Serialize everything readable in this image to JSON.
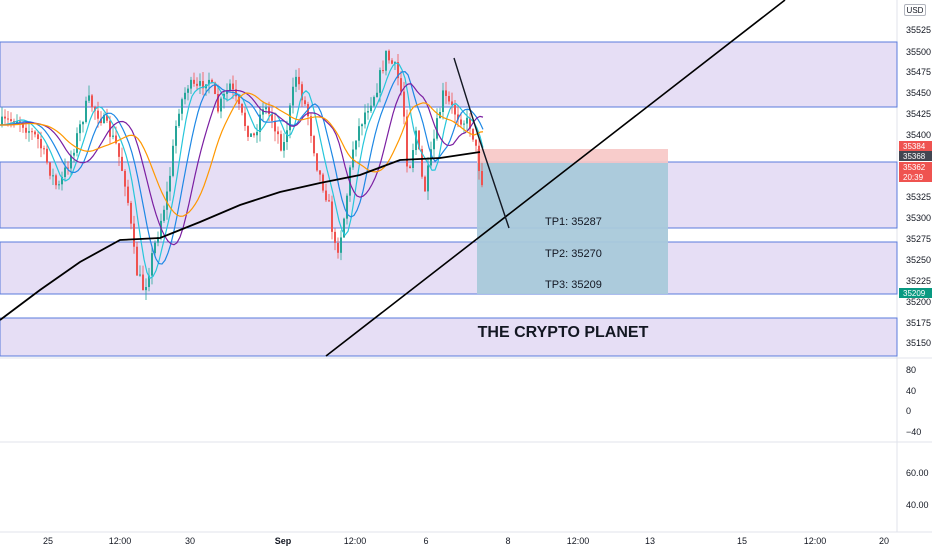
{
  "chart": {
    "currency": "USD",
    "watermark": "THE CRYPTO PLANET",
    "price_ticks": [
      "35525",
      "35500",
      "35475",
      "35450",
      "35425",
      "35400",
      "35375",
      "35350",
      "35325",
      "35300",
      "35275",
      "35250",
      "35225",
      "35200",
      "35175",
      "35150"
    ],
    "price_badges": [
      {
        "label": "35384",
        "color": "#ef5350"
      },
      {
        "label": "35368",
        "color": "#434651"
      },
      {
        "label": "35362",
        "color": "#ef5350"
      },
      {
        "label": "20:39",
        "color": "#ef5350"
      },
      {
        "label": "35209",
        "color": "#089981"
      }
    ],
    "time_ticks": [
      "25",
      "12:00",
      "30",
      "Sep",
      "12:00",
      "6",
      "8",
      "12:00",
      "13",
      "15",
      "12:00",
      "20"
    ],
    "targets": [
      {
        "label": "TP1: 35287"
      },
      {
        "label": "TP2: 35270"
      },
      {
        "label": "TP3: 35209"
      }
    ],
    "indicator1_ticks": [
      "80",
      "40",
      "0",
      "−40"
    ],
    "indicator2_ticks": [
      "60.00",
      "40.00"
    ]
  },
  "chart_data": {
    "type": "candlestick",
    "symbol_quote": "USD",
    "ylim": [
      35110,
      35545
    ],
    "zones": [
      {
        "from": 35430,
        "to": 35510
      },
      {
        "from": 35290,
        "to": 35365
      },
      {
        "from": 35209,
        "to": 35270
      },
      {
        "from": 35110,
        "to": 35185
      }
    ],
    "short_position": {
      "entry": 35365,
      "stop": 35384,
      "target": 35209
    },
    "take_profits": [
      35287,
      35270,
      35209
    ],
    "last_price": 35362,
    "moving_averages": 5,
    "trendline": "ascending support",
    "legend": "none"
  }
}
